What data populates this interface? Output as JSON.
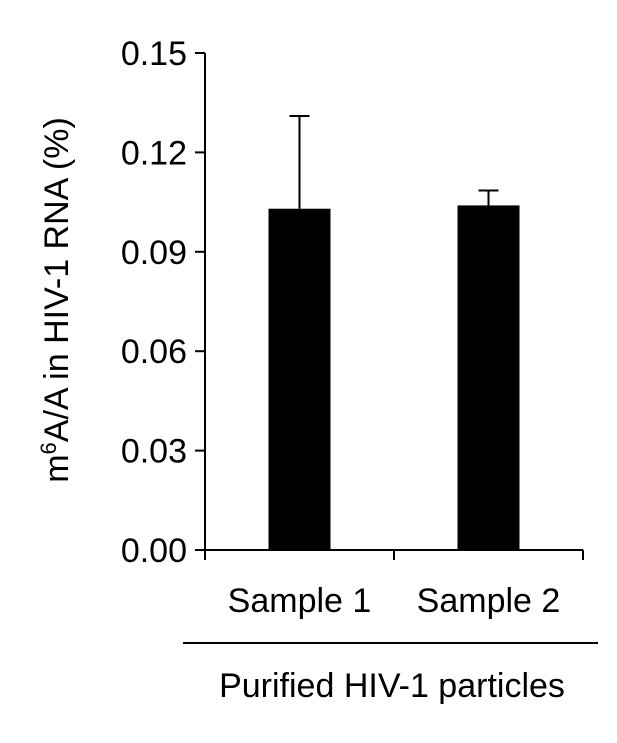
{
  "chart_data": {
    "type": "bar",
    "categories": [
      "Sample 1",
      "Sample 2"
    ],
    "values": [
      0.103,
      0.104
    ],
    "error_bars": [
      0.028,
      0.0045
    ],
    "ylim": [
      0.0,
      0.15
    ],
    "yticks": [
      "0.00",
      "0.03",
      "0.06",
      "0.09",
      "0.12",
      "0.15"
    ],
    "ylabel_prefix": "m",
    "ylabel_superscript": "6",
    "ylabel_rest": "A/A in HIV-1 RNA (%)",
    "group_label": "Purified HIV-1 particles",
    "grid": false,
    "bar_color": "#000000"
  }
}
